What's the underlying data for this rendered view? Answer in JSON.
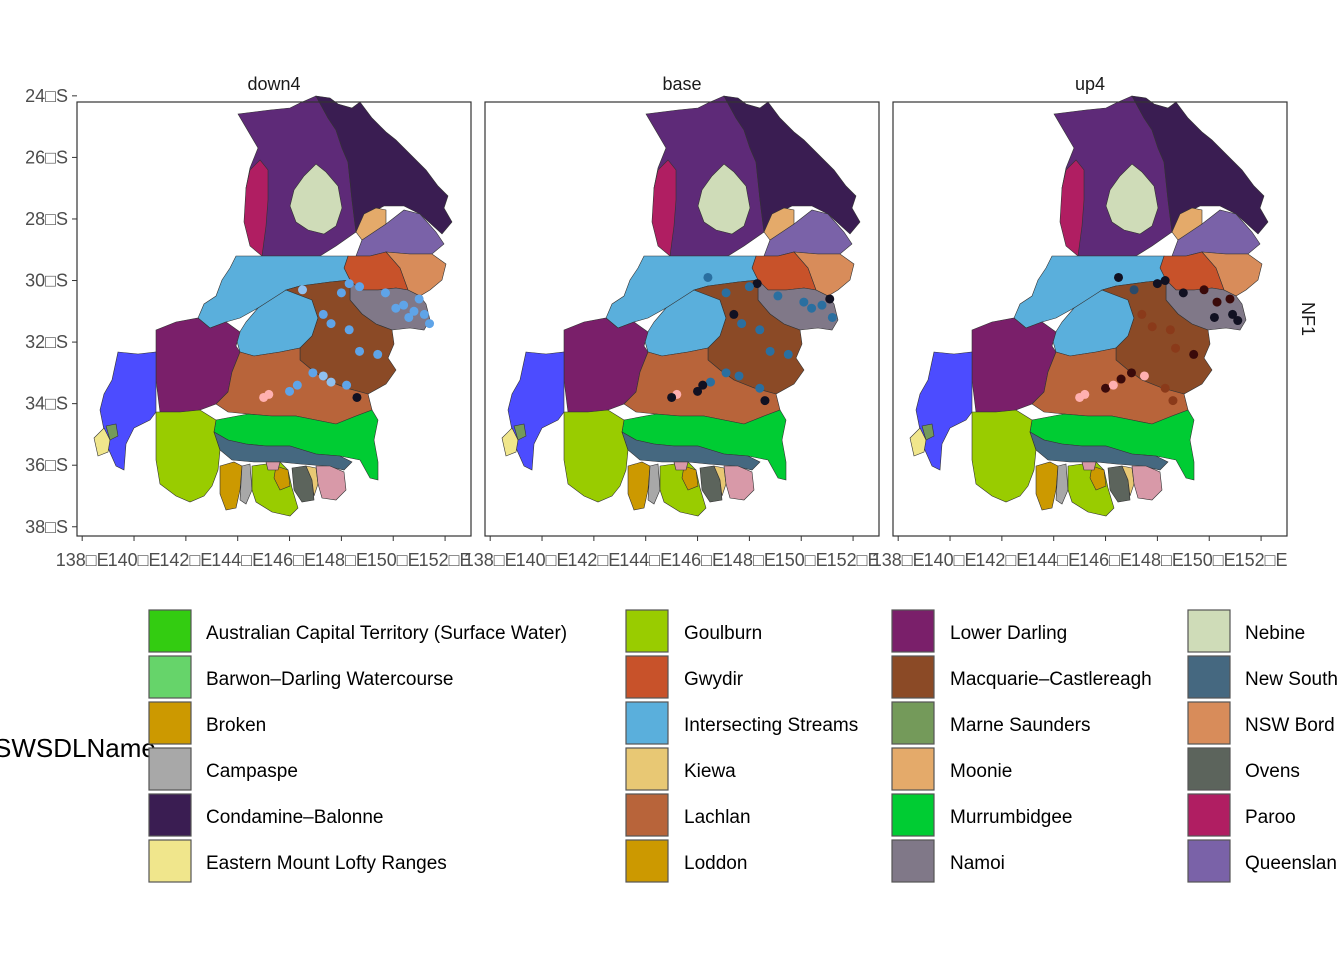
{
  "facets": [
    "down4",
    "base",
    "up4"
  ],
  "row_strip": "NF1",
  "axes": {
    "x_ticks": [
      "138□E",
      "140□E",
      "142□E",
      "144□E",
      "146□E",
      "148□E",
      "150□E",
      "152□E"
    ],
    "x_values": [
      138,
      140,
      142,
      144,
      146,
      148,
      150,
      152
    ],
    "y_ticks": [
      "24□S",
      "26□S",
      "28□S",
      "30□S",
      "32□S",
      "34□S",
      "36□S",
      "38□S"
    ],
    "y_values": [
      -24,
      -26,
      -28,
      -30,
      -32,
      -34,
      -36,
      -38
    ],
    "xlim": [
      137.8,
      153.0
    ],
    "ylim": [
      -38.3,
      -24.2
    ]
  },
  "legend": {
    "title": "SWSDLName",
    "items": [
      {
        "label": "Australian Capital Territory (Surface Water)",
        "color": "#33cc11"
      },
      {
        "label": "Barwon–Darling Watercourse",
        "color": "#66d46a"
      },
      {
        "label": "Broken",
        "color": "#cc9900"
      },
      {
        "label": "Campaspe",
        "color": "#a8a8a8"
      },
      {
        "label": "Condamine–Balonne",
        "color": "#3a1d52"
      },
      {
        "label": "Eastern Mount Lofty Ranges",
        "color": "#f0e68c"
      },
      {
        "label": "Goulburn",
        "color": "#99cc00"
      },
      {
        "label": "Gwydir",
        "color": "#c8522a"
      },
      {
        "label": "Intersecting Streams",
        "color": "#5aafdc"
      },
      {
        "label": "Kiewa",
        "color": "#e8c874"
      },
      {
        "label": "Lachlan",
        "color": "#b8643a"
      },
      {
        "label": "Loddon",
        "color": "#cc9900"
      },
      {
        "label": "Lower Darling",
        "color": "#7a1f6a"
      },
      {
        "label": "Macquarie–Castlereagh",
        "color": "#8b4a26"
      },
      {
        "label": "Marne Saunders",
        "color": "#749a5a"
      },
      {
        "label": "Moonie",
        "color": "#e4aa6a"
      },
      {
        "label": "Murrumbidgee",
        "color": "#00cc33"
      },
      {
        "label": "Namoi",
        "color": "#807888"
      },
      {
        "label": "Nebine",
        "color": "#cfdcb8"
      },
      {
        "label": "New South",
        "color": "#456880"
      },
      {
        "label": "NSW Bord",
        "color": "#d88c5a"
      },
      {
        "label": "Ovens",
        "color": "#5c645c"
      },
      {
        "label": "Paroo",
        "color": "#b01e62"
      },
      {
        "label": "Queenslan",
        "color": "#7a62a8"
      }
    ]
  },
  "basin_colors": {
    "warrego": "#5e2a78",
    "condamine": "#3a1d52",
    "paroo": "#b01e62",
    "nebine": "#cfdcb8",
    "moonie": "#e4aa6a",
    "queensland_border": "#7a62a8",
    "nsw_border": "#d88c5a",
    "gwydir": "#c8522a",
    "intersecting": "#5aafdc",
    "namoi": "#807888",
    "macquarie": "#8b4a26",
    "lower_darling": "#7a1f6a",
    "lachlan": "#b8643a",
    "sa_murray": "#4c4cff",
    "emlr": "#f0e68c",
    "marne": "#749a5a",
    "murrumbidgee": "#00cc33",
    "goulburn": "#99cc00",
    "new_south": "#456880",
    "broken": "#cc9900",
    "loddon": "#cc9900",
    "campaspe": "#a8a8a8",
    "ovens": "#5c645c",
    "kiewa": "#e8c874",
    "pink": "#d899a8"
  },
  "points": {
    "down4": [
      {
        "lon": 148.3,
        "lat": -30.1,
        "color": "#5fa4e8"
      },
      {
        "lon": 148.7,
        "lat": -30.2,
        "color": "#5fa4e8"
      },
      {
        "lon": 148.0,
        "lat": -30.4,
        "color": "#5fa4e8"
      },
      {
        "lon": 146.5,
        "lat": -30.3,
        "color": "#8fc0f0"
      },
      {
        "lon": 147.3,
        "lat": -31.1,
        "color": "#5fa4e8"
      },
      {
        "lon": 147.6,
        "lat": -31.4,
        "color": "#5fa4e8"
      },
      {
        "lon": 148.3,
        "lat": -31.6,
        "color": "#5fa4e8"
      },
      {
        "lon": 148.7,
        "lat": -32.3,
        "color": "#5fa4e8"
      },
      {
        "lon": 149.4,
        "lat": -32.4,
        "color": "#5fa4e8"
      },
      {
        "lon": 149.7,
        "lat": -30.4,
        "color": "#5fa4e8"
      },
      {
        "lon": 150.1,
        "lat": -30.9,
        "color": "#5fa4e8"
      },
      {
        "lon": 150.4,
        "lat": -30.8,
        "color": "#5fa4e8"
      },
      {
        "lon": 150.8,
        "lat": -31.0,
        "color": "#5fa4e8"
      },
      {
        "lon": 151.0,
        "lat": -30.6,
        "color": "#5fa4e8"
      },
      {
        "lon": 151.2,
        "lat": -31.1,
        "color": "#5fa4e8"
      },
      {
        "lon": 151.4,
        "lat": -31.4,
        "color": "#5fa4e8"
      },
      {
        "lon": 150.6,
        "lat": -31.2,
        "color": "#5fa4e8"
      },
      {
        "lon": 146.3,
        "lat": -33.4,
        "color": "#5fa4e8"
      },
      {
        "lon": 146.9,
        "lat": -33.0,
        "color": "#5fa4e8"
      },
      {
        "lon": 147.3,
        "lat": -33.1,
        "color": "#8fc0f0"
      },
      {
        "lon": 147.6,
        "lat": -33.3,
        "color": "#8fc0f0"
      },
      {
        "lon": 148.2,
        "lat": -33.4,
        "color": "#5fa4e8"
      },
      {
        "lon": 148.6,
        "lat": -33.8,
        "color": "#111122"
      },
      {
        "lon": 146.0,
        "lat": -33.6,
        "color": "#5fa4e8"
      },
      {
        "lon": 145.2,
        "lat": -33.7,
        "color": "#ffb0b0"
      },
      {
        "lon": 145.0,
        "lat": -33.8,
        "color": "#ffb0b0"
      }
    ],
    "base": [
      {
        "lon": 148.3,
        "lat": -30.1,
        "color": "#111122"
      },
      {
        "lon": 148.0,
        "lat": -30.2,
        "color": "#2a6fa0"
      },
      {
        "lon": 146.4,
        "lat": -29.9,
        "color": "#2a6fa0"
      },
      {
        "lon": 147.1,
        "lat": -30.4,
        "color": "#2a6fa0"
      },
      {
        "lon": 149.1,
        "lat": -30.5,
        "color": "#2a6fa0"
      },
      {
        "lon": 147.4,
        "lat": -31.1,
        "color": "#111122"
      },
      {
        "lon": 147.7,
        "lat": -31.4,
        "color": "#2a6fa0"
      },
      {
        "lon": 148.4,
        "lat": -31.6,
        "color": "#2a6fa0"
      },
      {
        "lon": 148.8,
        "lat": -32.3,
        "color": "#2a6fa0"
      },
      {
        "lon": 149.5,
        "lat": -32.4,
        "color": "#2a6fa0"
      },
      {
        "lon": 150.1,
        "lat": -30.7,
        "color": "#2a6fa0"
      },
      {
        "lon": 150.4,
        "lat": -30.9,
        "color": "#2a6fa0"
      },
      {
        "lon": 150.8,
        "lat": -30.8,
        "color": "#2a6fa0"
      },
      {
        "lon": 151.1,
        "lat": -30.6,
        "color": "#111122"
      },
      {
        "lon": 151.2,
        "lat": -31.2,
        "color": "#2a6fa0"
      },
      {
        "lon": 146.0,
        "lat": -33.6,
        "color": "#111122"
      },
      {
        "lon": 146.5,
        "lat": -33.3,
        "color": "#2a6fa0"
      },
      {
        "lon": 147.1,
        "lat": -33.0,
        "color": "#2a6fa0"
      },
      {
        "lon": 147.6,
        "lat": -33.1,
        "color": "#2a6fa0"
      },
      {
        "lon": 148.4,
        "lat": -33.5,
        "color": "#2a6fa0"
      },
      {
        "lon": 148.6,
        "lat": -33.9,
        "color": "#111122"
      },
      {
        "lon": 145.2,
        "lat": -33.7,
        "color": "#ffb0b0"
      },
      {
        "lon": 145.0,
        "lat": -33.8,
        "color": "#111122"
      },
      {
        "lon": 146.2,
        "lat": -33.4,
        "color": "#111122"
      }
    ],
    "up4": [
      {
        "lon": 148.3,
        "lat": -30.0,
        "color": "#111122"
      },
      {
        "lon": 148.0,
        "lat": -30.1,
        "color": "#111122"
      },
      {
        "lon": 146.5,
        "lat": -29.9,
        "color": "#111122"
      },
      {
        "lon": 147.1,
        "lat": -30.3,
        "color": "#2a4a6a"
      },
      {
        "lon": 149.0,
        "lat": -30.4,
        "color": "#111122"
      },
      {
        "lon": 149.8,
        "lat": -30.3,
        "color": "#3a0a0a"
      },
      {
        "lon": 150.3,
        "lat": -30.7,
        "color": "#3a0a0a"
      },
      {
        "lon": 150.8,
        "lat": -30.6,
        "color": "#3a0a0a"
      },
      {
        "lon": 150.2,
        "lat": -31.2,
        "color": "#111122"
      },
      {
        "lon": 150.9,
        "lat": -31.1,
        "color": "#111122"
      },
      {
        "lon": 151.1,
        "lat": -31.3,
        "color": "#111122"
      },
      {
        "lon": 147.4,
        "lat": -31.1,
        "color": "#8a3a1a"
      },
      {
        "lon": 147.8,
        "lat": -31.5,
        "color": "#8a3a1a"
      },
      {
        "lon": 148.5,
        "lat": -31.6,
        "color": "#8a3a1a"
      },
      {
        "lon": 148.7,
        "lat": -32.2,
        "color": "#8a3a1a"
      },
      {
        "lon": 149.4,
        "lat": -32.4,
        "color": "#3a0a0a"
      },
      {
        "lon": 146.0,
        "lat": -33.5,
        "color": "#3a0a0a"
      },
      {
        "lon": 146.6,
        "lat": -33.2,
        "color": "#3a0a0a"
      },
      {
        "lon": 147.0,
        "lat": -33.0,
        "color": "#3a0a0a"
      },
      {
        "lon": 147.5,
        "lat": -33.1,
        "color": "#ffb0b0"
      },
      {
        "lon": 148.3,
        "lat": -33.5,
        "color": "#8a3a1a"
      },
      {
        "lon": 148.6,
        "lat": -33.9,
        "color": "#8a3a1a"
      },
      {
        "lon": 145.2,
        "lat": -33.7,
        "color": "#ffb0b0"
      },
      {
        "lon": 145.0,
        "lat": -33.8,
        "color": "#ffb0b0"
      },
      {
        "lon": 146.3,
        "lat": -33.4,
        "color": "#ffb0b0"
      }
    ]
  }
}
